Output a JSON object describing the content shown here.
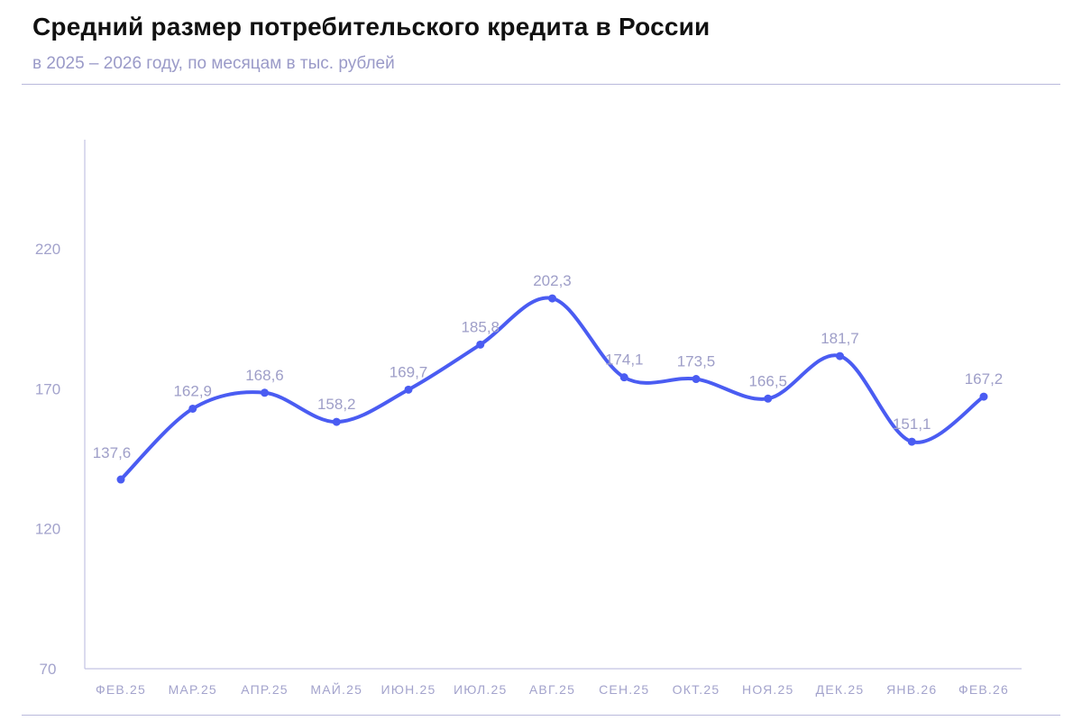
{
  "header": {
    "title": "Средний размер потребительского кредита в России",
    "subtitle": "в 2025 – 2026 году, по месяцам в тыс. рублей"
  },
  "colors": {
    "line": "#4a5cf2",
    "axis": "#c3c3e3",
    "text_muted": "#a3a3cc"
  },
  "chart_data": {
    "type": "line",
    "title": "Средний размер потребительского кредита в России",
    "subtitle": "в 2025 – 2026 году, по месяцам в тыс. рублей",
    "xlabel": "",
    "ylabel": "",
    "categories": [
      "ФЕВ.25",
      "МАР.25",
      "АПР.25",
      "МАЙ.25",
      "ИЮН.25",
      "ИЮЛ.25",
      "АВГ.25",
      "СЕН.25",
      "ОКТ.25",
      "НОЯ.25",
      "ДЕК.25",
      "ЯНВ.26",
      "ФЕВ.26"
    ],
    "values": [
      137.6,
      162.9,
      168.6,
      158.2,
      169.7,
      185.8,
      202.3,
      174.1,
      173.5,
      166.5,
      181.7,
      151.1,
      167.2
    ],
    "value_labels": [
      "137,6",
      "162,9",
      "168,6",
      "158,2",
      "169,7",
      "185,8",
      "202,3",
      "174,1",
      "173,5",
      "166,5",
      "181,7",
      "151,1",
      "167,2"
    ],
    "yticks": [
      70,
      120,
      170,
      220
    ],
    "ylim": [
      70,
      259
    ],
    "grid": false,
    "smooth": true
  }
}
